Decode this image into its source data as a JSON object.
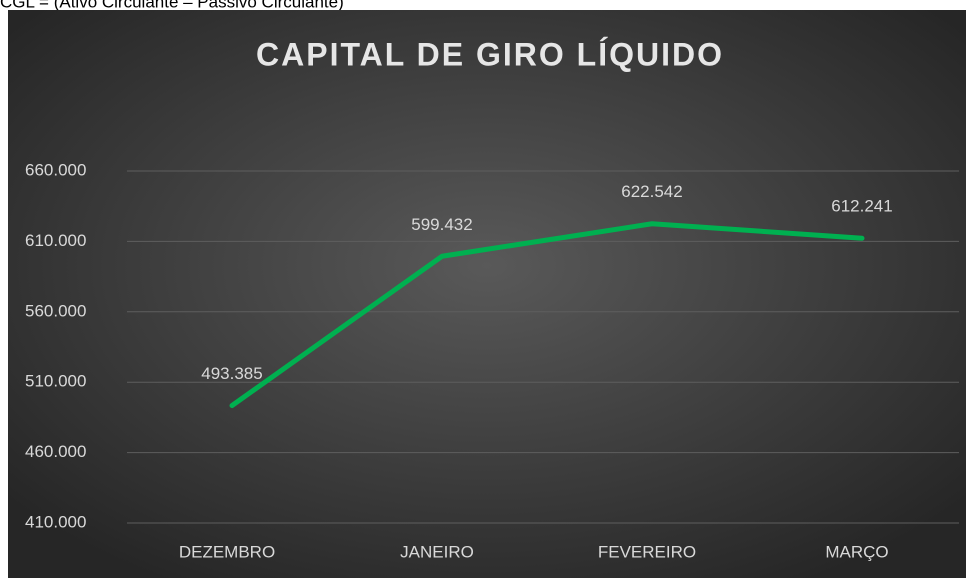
{
  "header": {
    "formula": "CGL = (Ativo Circulante – Passivo Circulante)"
  },
  "chart_data": {
    "type": "line",
    "title": "CAPITAL DE GIRO LÍQUIDO",
    "categories": [
      "DEZEMBRO",
      "JANEIRO",
      "FEVEREIRO",
      "MARÇO"
    ],
    "series": [
      {
        "color": "#00b050",
        "values": [
          493385,
          599432,
          622542,
          612241
        ],
        "value_labels": [
          "493.385",
          "599.432",
          "622.542",
          "612.241"
        ]
      }
    ],
    "ylim": [
      410000,
      660000
    ],
    "yticks": [
      {
        "value": 410000,
        "label": "410.000"
      },
      {
        "value": 460000,
        "label": "460.000"
      },
      {
        "value": 510000,
        "label": "510.000"
      },
      {
        "value": 560000,
        "label": "560.000"
      },
      {
        "value": 610000,
        "label": "610.000"
      },
      {
        "value": 660000,
        "label": "660.000"
      }
    ],
    "grid": true
  }
}
